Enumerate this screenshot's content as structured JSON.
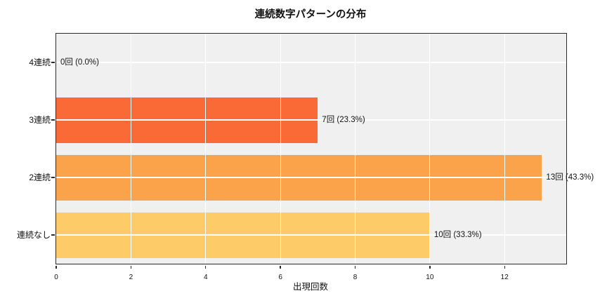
{
  "chart_data": {
    "type": "bar",
    "orientation": "horizontal",
    "title": "連続数字パターンの分布",
    "xlabel": "出現回数",
    "ylabel": "",
    "categories": [
      "4連続",
      "3連続",
      "2連続",
      "連続なし"
    ],
    "values": [
      0,
      7,
      13,
      10
    ],
    "value_labels": [
      "0回 (0.0%)",
      "7回 (23.3%)",
      "13回 (43.3%)",
      "10回 (33.3%)"
    ],
    "bar_colors": [
      null,
      "#f96a36",
      "#fba34a",
      "#fecb69"
    ],
    "xticks": [
      0,
      2,
      4,
      6,
      8,
      10,
      12
    ],
    "xlim": [
      0,
      13.65
    ],
    "grid": true,
    "grid_color": "#ffffff",
    "plot_background": "#f0f0f0",
    "axis_color": "#2a2a2a",
    "legend": false
  }
}
